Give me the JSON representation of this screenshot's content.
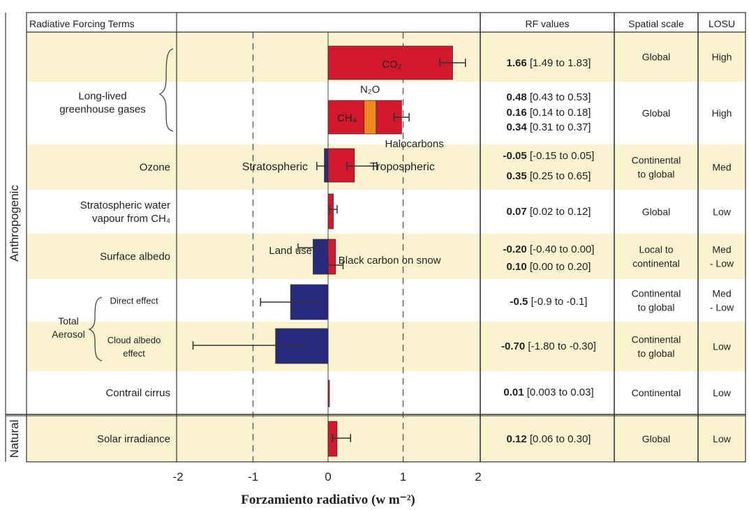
{
  "colors": {
    "band": "#fbf3cf",
    "positive": "#d3182e",
    "negative": "#272a7e",
    "n2o": "#f08a1c",
    "positive_text": "#d3182e",
    "negative_text": "#24408e",
    "n2o_text": "#e98a2a",
    "errorbar": "#333333"
  },
  "headers": {
    "terms": "Radiative Forcing Terms",
    "rf_values": "RF values",
    "spatial": "Spatial scale",
    "losu": "LOSU"
  },
  "groups": [
    {
      "label": "Anthropogenic",
      "rows": [
        0,
        7
      ]
    },
    {
      "label": "Natural",
      "rows": [
        8,
        8
      ]
    }
  ],
  "rows": [
    {
      "term": [
        "Long-lived",
        "greenhouse gases"
      ],
      "spatial": [
        "Global"
      ],
      "losu": [
        "High"
      ]
    },
    {
      "term": [],
      "spatial": [
        "Global"
      ],
      "losu": [
        "High"
      ]
    },
    {
      "term": [
        "Ozone"
      ],
      "spatial": [
        "Continental",
        "to global"
      ],
      "losu": [
        "Med"
      ]
    },
    {
      "term": [
        "Stratospheric water",
        "vapour from CH₄"
      ],
      "spatial": [
        "Global"
      ],
      "losu": [
        "Low"
      ]
    },
    {
      "term": [
        "Surface albedo"
      ],
      "spatial": [
        "Local to",
        "continental"
      ],
      "losu": [
        "Med",
        "- Low"
      ]
    },
    {
      "term": [
        "Direct effect"
      ],
      "spatial": [
        "Continental",
        "to global"
      ],
      "losu": [
        "Med",
        "- Low"
      ]
    },
    {
      "term": [
        "Cloud albedo",
        "effect"
      ],
      "spatial": [
        "Continental",
        "to global"
      ],
      "losu": [
        "Low"
      ]
    },
    {
      "term": [
        "Contrail cirrus"
      ],
      "spatial": [
        "Continental"
      ],
      "losu": [
        "Low"
      ]
    },
    {
      "term": [
        "Solar irradiance"
      ],
      "spatial": [
        "Global"
      ],
      "losu": [
        "Low"
      ]
    }
  ],
  "aerosol_label": [
    "Total",
    "Aerosol"
  ],
  "chart_data": {
    "type": "bar",
    "orientation": "horizontal",
    "xlabel": "Forzamiento radiativo (w m⁻²)",
    "xlim": [
      -2,
      2
    ],
    "xticks": [
      "-2",
      "-1",
      "0",
      "1",
      "2"
    ],
    "dashed_gridlines_at": [
      -1,
      1
    ],
    "bars": [
      {
        "row": 0,
        "label": "CO₂",
        "value": 1.66,
        "low": 1.49,
        "high": 1.83,
        "color": "positive",
        "rf_text": "1.66",
        "rf_range": "[1.49 to 1.83]"
      },
      {
        "row": 1,
        "label": "CH₄",
        "value": 0.48,
        "low": 0.43,
        "high": 0.53,
        "color": "positive",
        "rf_text": "0.48",
        "rf_range": "[0.43 to 0.53]"
      },
      {
        "row": 1,
        "label": "N₂O",
        "value": 0.16,
        "low": 0.14,
        "high": 0.18,
        "color": "n2o",
        "rf_text": "0.16",
        "rf_range": "[0.14 to 0.18]"
      },
      {
        "row": 1,
        "label": "Halocarbons",
        "value": 0.34,
        "low": 0.31,
        "high": 0.37,
        "color": "positive",
        "rf_text": "0.34",
        "rf_range": "[0.31 to 0.37]"
      },
      {
        "row": 2,
        "label": "Stratospheric",
        "value": -0.05,
        "low": -0.15,
        "high": 0.05,
        "color": "negative",
        "rf_text": "-0.05",
        "rf_range": "[-0.15 to 0.05]"
      },
      {
        "row": 2,
        "label": "Tropospheric",
        "value": 0.35,
        "low": 0.25,
        "high": 0.65,
        "color": "positive",
        "rf_text": "0.35",
        "rf_range": "[0.25 to 0.65]"
      },
      {
        "row": 3,
        "label": "",
        "value": 0.07,
        "low": 0.02,
        "high": 0.12,
        "color": "positive",
        "rf_text": "0.07",
        "rf_range": "[0.02 to 0.12]"
      },
      {
        "row": 4,
        "label": "Land use",
        "value": -0.2,
        "low": -0.4,
        "high": 0.0,
        "color": "negative",
        "rf_text": "-0.20",
        "rf_range": "[-0.40 to 0.00]"
      },
      {
        "row": 4,
        "label": "Black carbon on snow",
        "value": 0.1,
        "low": 0.0,
        "high": 0.2,
        "color": "positive",
        "rf_text": "0.10",
        "rf_range": "[0.00 to 0.20]"
      },
      {
        "row": 5,
        "label": "",
        "value": -0.5,
        "low": -0.9,
        "high": -0.1,
        "color": "negative",
        "rf_text": "-0.5",
        "rf_range": "[-0.9 to -0.1]"
      },
      {
        "row": 6,
        "label": "",
        "value": -0.7,
        "low": -1.8,
        "high": -0.3,
        "color": "negative",
        "rf_text": "-0.70",
        "rf_range": "[-1.80 to -0.30]"
      },
      {
        "row": 7,
        "label": "",
        "value": 0.01,
        "low": 0.003,
        "high": 0.03,
        "color": "positive",
        "rf_text": "0.01",
        "rf_range": "[0.003 to 0.03]"
      },
      {
        "row": 8,
        "label": "",
        "value": 0.12,
        "low": 0.06,
        "high": 0.3,
        "color": "positive",
        "rf_text": "0.12",
        "rf_range": "[0.06 to 0.30]"
      }
    ]
  }
}
